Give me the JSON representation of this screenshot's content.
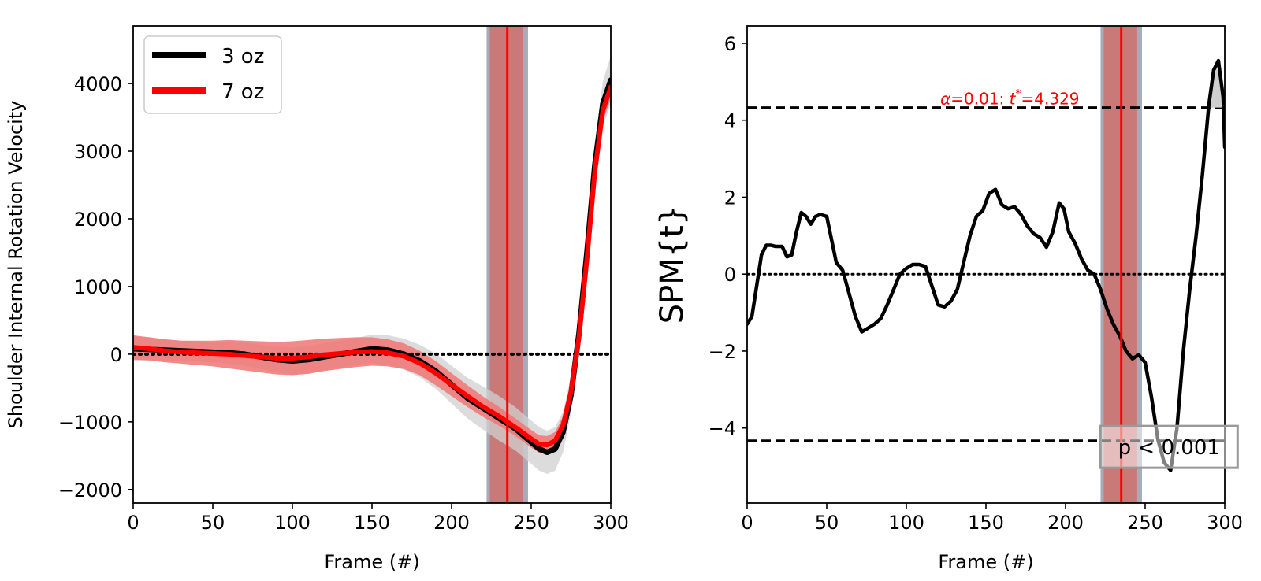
{
  "chart_data": [
    {
      "type": "line",
      "xlabel": "Frame (#)",
      "ylabel": "Shoulder Internal Rotation Velocity",
      "xlim": [
        0,
        300
      ],
      "ylim": [
        -2200,
        4850
      ],
      "xticks": [
        0,
        50,
        100,
        150,
        200,
        250,
        300
      ],
      "yticks": [
        -2000,
        -1000,
        0,
        1000,
        2000,
        3000,
        4000
      ],
      "xtick_labels": [
        "0",
        "50",
        "100",
        "150",
        "200",
        "250",
        "300"
      ],
      "ytick_labels": [
        "−2000",
        "−1000",
        "0",
        "1000",
        "2000",
        "3000",
        "4000"
      ],
      "legend_position": "upper-left",
      "zero_line": {
        "y": 0,
        "style": "dotted",
        "color": "#000000"
      },
      "shaded_region": {
        "x_outer": [
          222,
          248
        ],
        "x_inner": [
          224,
          245
        ],
        "marker_x": 235,
        "outer_color": "#a8acb8",
        "inner_color": "#c97a78",
        "marker_color": "#ff0000"
      },
      "series": [
        {
          "name": "3 oz",
          "color": "#000000",
          "band_color": "#d0d0d0",
          "x": [
            0,
            10,
            20,
            30,
            40,
            50,
            60,
            70,
            80,
            90,
            100,
            110,
            120,
            130,
            140,
            150,
            160,
            170,
            180,
            190,
            200,
            210,
            220,
            230,
            240,
            250,
            255,
            260,
            265,
            270,
            275,
            280,
            285,
            290,
            295,
            300
          ],
          "y": [
            80,
            70,
            60,
            50,
            40,
            30,
            20,
            0,
            -40,
            -80,
            -100,
            -80,
            -40,
            0,
            40,
            80,
            60,
            0,
            -100,
            -250,
            -450,
            -650,
            -800,
            -950,
            -1100,
            -1300,
            -1400,
            -1450,
            -1400,
            -1150,
            -600,
            300,
            1500,
            2800,
            3700,
            4050
          ],
          "band": [
            180,
            180,
            160,
            150,
            150,
            150,
            160,
            170,
            180,
            190,
            200,
            200,
            200,
            200,
            200,
            210,
            220,
            230,
            240,
            260,
            280,
            300,
            320,
            330,
            320,
            320,
            320,
            320,
            320,
            300,
            280,
            250,
            250,
            280,
            330,
            360
          ]
        },
        {
          "name": "7 oz",
          "color": "#ff0000",
          "band_color": "#f07575",
          "x": [
            0,
            10,
            20,
            30,
            40,
            50,
            60,
            70,
            80,
            90,
            100,
            110,
            120,
            130,
            140,
            150,
            160,
            170,
            180,
            190,
            200,
            210,
            220,
            230,
            240,
            250,
            255,
            260,
            265,
            270,
            275,
            280,
            285,
            290,
            295,
            300
          ],
          "y": [
            100,
            80,
            50,
            30,
            20,
            10,
            0,
            -20,
            -40,
            -60,
            -60,
            -40,
            -10,
            10,
            30,
            40,
            20,
            -30,
            -130,
            -280,
            -450,
            -620,
            -780,
            -920,
            -1080,
            -1250,
            -1330,
            -1340,
            -1280,
            -1050,
            -550,
            250,
            1400,
            2700,
            3600,
            3950
          ],
          "band": [
            180,
            170,
            170,
            170,
            180,
            190,
            210,
            220,
            230,
            240,
            250,
            250,
            240,
            230,
            220,
            210,
            200,
            190,
            180,
            180,
            170,
            160,
            150,
            140,
            130,
            130,
            130,
            130,
            130,
            130,
            130,
            130,
            140,
            150,
            160,
            170
          ]
        }
      ]
    },
    {
      "type": "line",
      "xlabel": "Frame (#)",
      "ylabel": "SPM{t}",
      "xlim": [
        0,
        300
      ],
      "ylim": [
        -5.95,
        6.45
      ],
      "xticks": [
        0,
        50,
        100,
        150,
        200,
        250,
        300
      ],
      "yticks": [
        -4,
        -2,
        0,
        2,
        4,
        6
      ],
      "xtick_labels": [
        "0",
        "50",
        "100",
        "150",
        "200",
        "250",
        "300"
      ],
      "ytick_labels": [
        "−4",
        "−2",
        "0",
        "2",
        "4",
        "6"
      ],
      "threshold": {
        "value": 4.329,
        "text": "α=0.01:  t* =4.329",
        "text_alpha": "α",
        "text_mid": "=0.01:  ",
        "text_t": "t",
        "text_star": "*",
        "text_value": "=4.329",
        "color": "#ff0000"
      },
      "zero_line": {
        "y": 0,
        "style": "dotted",
        "color": "#000000"
      },
      "shaded_region": {
        "x_outer": [
          222,
          248
        ],
        "x_inner": [
          224,
          245
        ],
        "marker_x": 235,
        "outer_color": "#a8acb8",
        "inner_color": "#c97a78",
        "marker_color": "#ff0000"
      },
      "annotation": {
        "text": "p < 0.001",
        "x": 265,
        "y": -4.5
      },
      "series": [
        {
          "name": "SPM{t}",
          "color": "#000000",
          "x": [
            0,
            3,
            6,
            9,
            12,
            15,
            18,
            22,
            25,
            28,
            31,
            34,
            37,
            40,
            43,
            46,
            50,
            53,
            56,
            60,
            64,
            68,
            72,
            76,
            80,
            84,
            88,
            92,
            96,
            100,
            104,
            108,
            112,
            116,
            120,
            124,
            128,
            132,
            136,
            140,
            144,
            148,
            152,
            156,
            160,
            164,
            168,
            172,
            176,
            180,
            184,
            188,
            192,
            196,
            199,
            202,
            206,
            210,
            214,
            218,
            222,
            226,
            230,
            234,
            238,
            242,
            246,
            250,
            254,
            258,
            262,
            266,
            270,
            274,
            278,
            282,
            286,
            290,
            293,
            296,
            299,
            300
          ],
          "y": [
            -1.3,
            -1.1,
            -0.3,
            0.5,
            0.75,
            0.75,
            0.72,
            0.72,
            0.45,
            0.5,
            1.1,
            1.6,
            1.5,
            1.3,
            1.5,
            1.55,
            1.5,
            0.9,
            0.3,
            0.1,
            -0.5,
            -1.1,
            -1.5,
            -1.4,
            -1.3,
            -1.15,
            -0.8,
            -0.4,
            0.0,
            0.15,
            0.25,
            0.25,
            0.2,
            -0.3,
            -0.8,
            -0.85,
            -0.7,
            -0.4,
            0.3,
            1.0,
            1.5,
            1.65,
            2.1,
            2.2,
            1.8,
            1.7,
            1.75,
            1.55,
            1.25,
            1.05,
            0.95,
            0.7,
            1.1,
            1.85,
            1.7,
            1.1,
            0.8,
            0.4,
            0.1,
            0.0,
            -0.4,
            -0.9,
            -1.3,
            -1.6,
            -2.0,
            -2.2,
            -2.1,
            -2.3,
            -3.2,
            -4.3,
            -4.9,
            -5.1,
            -4.0,
            -2.0,
            -0.4,
            1.0,
            2.6,
            4.4,
            5.3,
            5.55,
            4.6,
            3.3
          ]
        }
      ]
    }
  ]
}
